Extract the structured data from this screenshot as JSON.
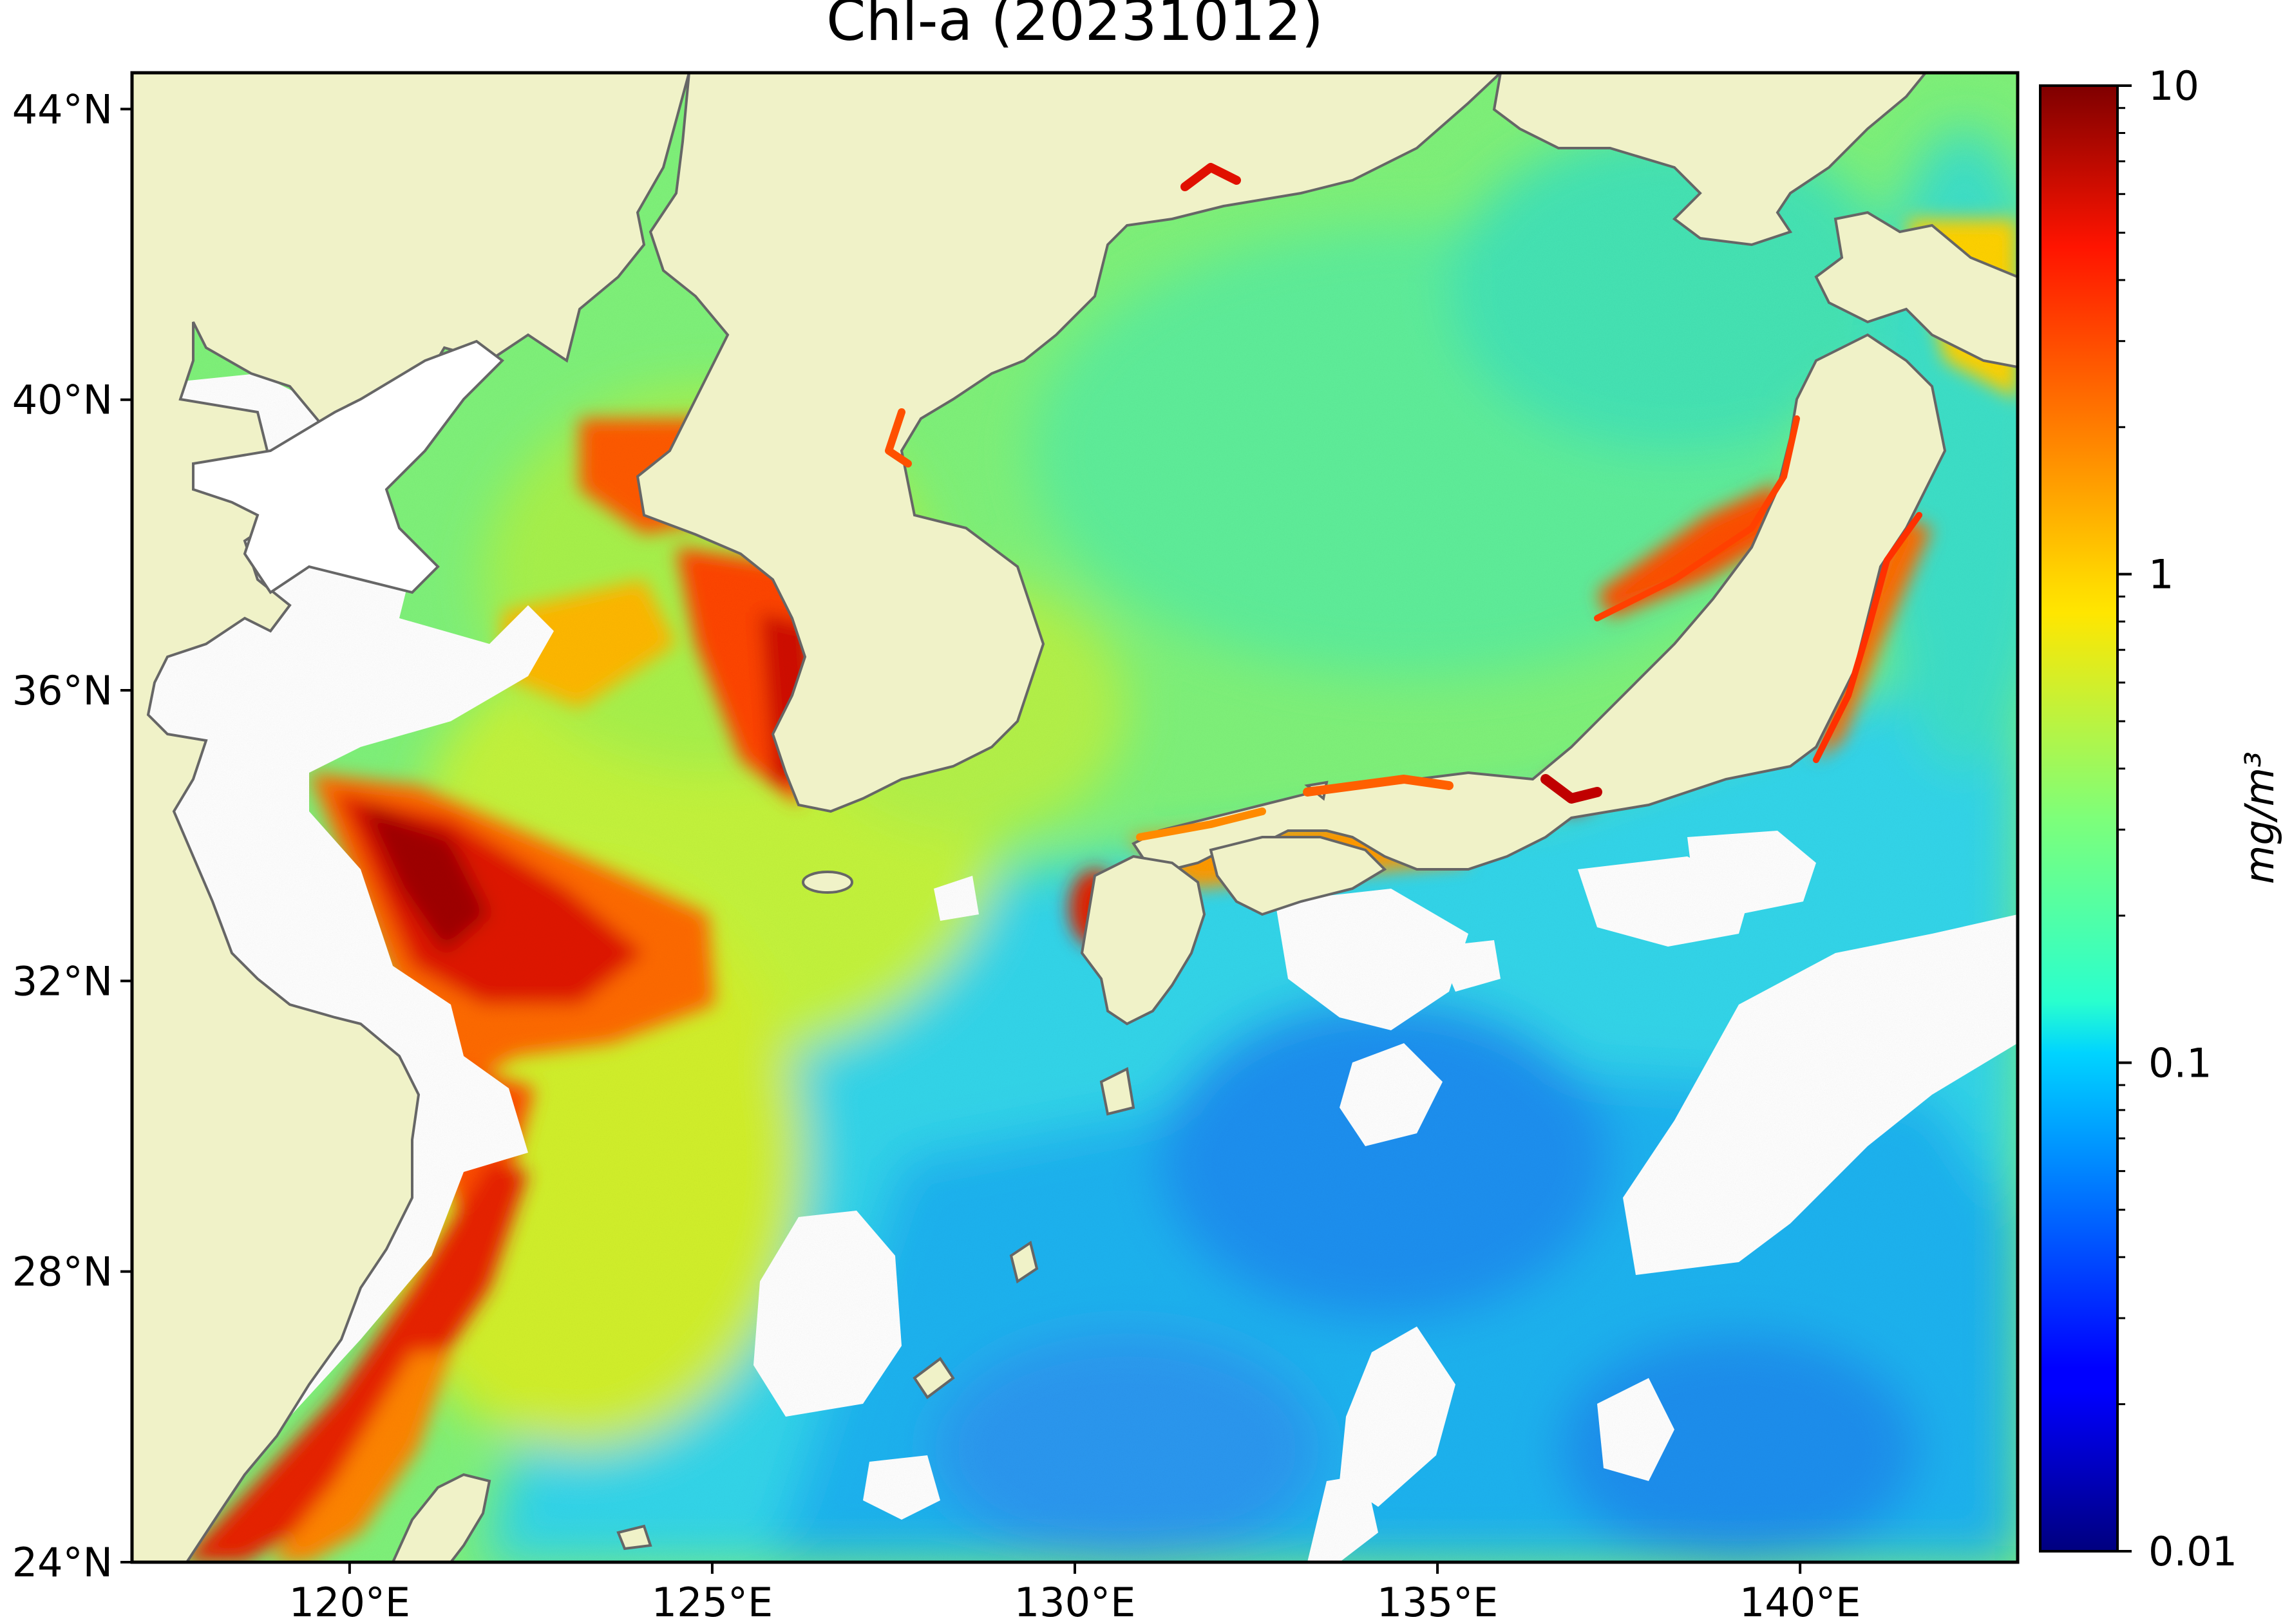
{
  "title": "Chl-a (20231012)",
  "map": {
    "lon_range": [
      117.0,
      143.0
    ],
    "lat_range": [
      24.0,
      44.5
    ],
    "land_color": "#f0f2c8",
    "coast_color": "#666666",
    "no_data_color": "#ffffff",
    "lat_ticks": [
      {
        "value": 44,
        "label": "44°N"
      },
      {
        "value": 40,
        "label": "40°N"
      },
      {
        "value": 36,
        "label": "36°N"
      },
      {
        "value": 32,
        "label": "32°N"
      },
      {
        "value": 28,
        "label": "28°N"
      },
      {
        "value": 24,
        "label": "24°N"
      }
    ],
    "lon_ticks": [
      {
        "value": 120,
        "label": "120°E"
      },
      {
        "value": 125,
        "label": "125°E"
      },
      {
        "value": 130,
        "label": "130°E"
      },
      {
        "value": 135,
        "label": "135°E"
      },
      {
        "value": 140,
        "label": "140°E"
      }
    ]
  },
  "colorbar": {
    "label": "mg/m³",
    "scale": "log",
    "range": [
      0.01,
      10
    ],
    "colormap": "jet",
    "ticks": [
      {
        "value": 10,
        "label": "10"
      },
      {
        "value": 1,
        "label": "1"
      },
      {
        "value": 0.1,
        "label": "0.1"
      },
      {
        "value": 0.01,
        "label": "0.01"
      }
    ]
  }
}
